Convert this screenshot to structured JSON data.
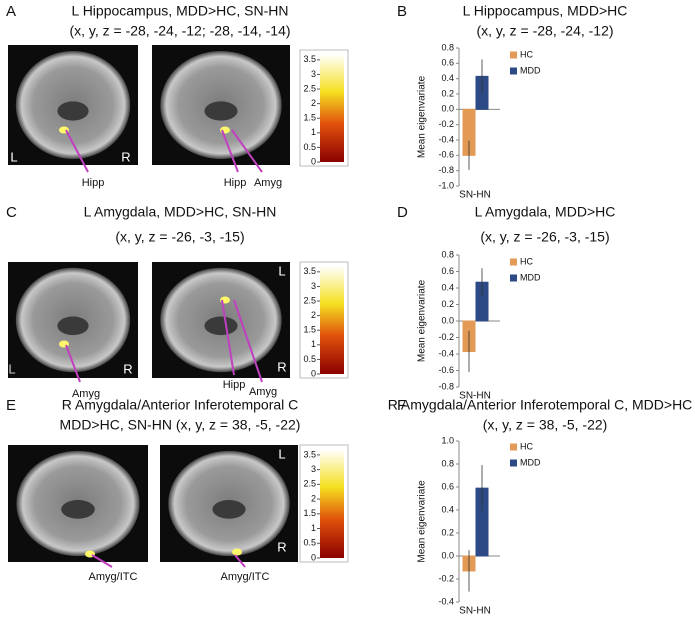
{
  "panels": [
    {
      "letter": "A",
      "title": [
        "L Hippocampus, MDD>HC, SN-HN",
        "(x, y, z = -28, -24, -12; -28, -14, -14)"
      ],
      "labels": [
        "L",
        "R",
        "Hipp",
        "Hipp",
        "Amyg"
      ],
      "colorbar": {
        "lim": [
          0,
          3.7
        ],
        "ticks": [
          0,
          0.5,
          1,
          1.5,
          2,
          2.5,
          3,
          3.5
        ]
      }
    },
    {
      "letter": "C",
      "title": [
        "L Amygdala, MDD>HC, SN-HN",
        "(x, y, z = -26, -3, -15)"
      ],
      "labels": [
        "L",
        "R",
        "Amyg",
        "L",
        "R",
        "Hipp",
        "Amyg"
      ],
      "colorbar": {
        "lim": [
          0,
          3.7
        ],
        "ticks": [
          0,
          0.5,
          1,
          1.5,
          2,
          2.5,
          3,
          3.5
        ]
      }
    },
    {
      "letter": "E",
      "title": [
        "R Amygdala/Anterior Inferotemporal C",
        "MDD>HC, SN-HN (x, y, z = 38, -5, -22)"
      ],
      "labels": [
        "Amyg/ITC",
        "L",
        "R",
        "Amyg/ITC"
      ],
      "colorbar": {
        "lim": [
          0,
          3.7
        ],
        "ticks": [
          0,
          0.5,
          1,
          1.5,
          2,
          2.5,
          3,
          3.5
        ]
      }
    }
  ],
  "chart_data": [
    {
      "type": "bar",
      "letter": "B",
      "title": "L Hippocampus, MDD>HC",
      "subtitle": "(x, y, z = -28, -24, -12)",
      "ylabel": "Mean eigenvariate",
      "categories": [
        "SN-HN"
      ],
      "series": [
        {
          "name": "HC",
          "color": "#e39a55",
          "values": [
            -0.6
          ],
          "errors": [
            0.19
          ]
        },
        {
          "name": "MDD",
          "color": "#2c4a86",
          "values": [
            0.43
          ],
          "errors": [
            0.22
          ]
        }
      ],
      "ylim": [
        -1.0,
        0.8
      ],
      "yticks": [
        {
          "value": -1.0,
          "label": "-1.0"
        },
        -0.8,
        -0.6,
        -0.4,
        -0.2,
        {
          "value": 0,
          "label": "0.0"
        },
        0.2,
        0.4,
        0.6,
        0.8
      ]
    },
    {
      "type": "bar",
      "letter": "D",
      "title": "L Amygdala, MDD>HC",
      "subtitle": "(x, y, z = -26, -3, -15)",
      "ylabel": "Mean eigenvariate",
      "categories": [
        "SN-HN"
      ],
      "series": [
        {
          "name": "HC",
          "color": "#e39a55",
          "values": [
            -0.37
          ],
          "errors": [
            0.25
          ]
        },
        {
          "name": "MDD",
          "color": "#2c4a86",
          "values": [
            0.47
          ],
          "errors": [
            0.17
          ]
        }
      ],
      "ylim": [
        -0.8,
        0.8
      ],
      "yticks": [
        -0.8,
        -0.6,
        -0.4,
        -0.2,
        {
          "value": 0,
          "label": "0.0"
        },
        0.2,
        0.4,
        0.6,
        0.8
      ]
    },
    {
      "type": "bar",
      "letter": "F",
      "title": "R Amygdala/Anterior Inferotemporal C, MDD>HC",
      "subtitle": "(x, y, z = 38, -5, -22)",
      "ylabel": "Mean eigenvariate",
      "categories": [
        "SN-HN"
      ],
      "series": [
        {
          "name": "HC",
          "color": "#e39a55",
          "values": [
            -0.13
          ],
          "errors": [
            0.18
          ]
        },
        {
          "name": "MDD",
          "color": "#2c4a86",
          "values": [
            0.59
          ],
          "errors": [
            0.2
          ]
        }
      ],
      "ylim": [
        -0.4,
        1.0
      ],
      "yticks": [
        -0.4,
        -0.2,
        {
          "value": 0,
          "label": "0.0"
        },
        0.2,
        0.4,
        0.6,
        0.8,
        {
          "value": 1.0,
          "label": "1.0"
        }
      ]
    }
  ]
}
